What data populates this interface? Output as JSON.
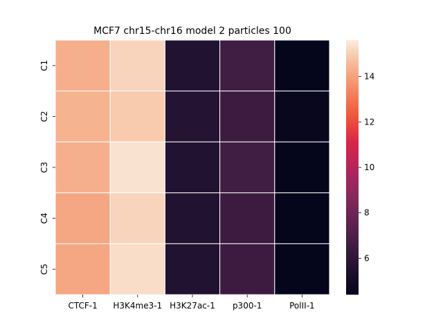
{
  "chart_data": {
    "type": "heatmap",
    "title": "MCF7 chr15-chr16 model 2 particles 100",
    "x_categories": [
      "CTCF-1",
      "H3K4me3-1",
      "H3K27ac-1",
      "p300-1",
      "PolII-1"
    ],
    "y_categories": [
      "C1",
      "C2",
      "C3",
      "C4",
      "C5"
    ],
    "values": [
      [
        14.3,
        15.1,
        5.6,
        6.6,
        4.5
      ],
      [
        14.4,
        14.9,
        5.7,
        6.5,
        4.6
      ],
      [
        14.3,
        15.4,
        5.6,
        6.6,
        4.5
      ],
      [
        14.1,
        15.1,
        5.6,
        6.5,
        4.5
      ],
      [
        14.1,
        15.3,
        5.6,
        6.5,
        4.5
      ]
    ],
    "colorbar": {
      "vmin": 4.4,
      "vmax": 15.6,
      "ticks": [
        6,
        8,
        10,
        12,
        14
      ],
      "colormap": "rocket"
    },
    "grid": false
  }
}
